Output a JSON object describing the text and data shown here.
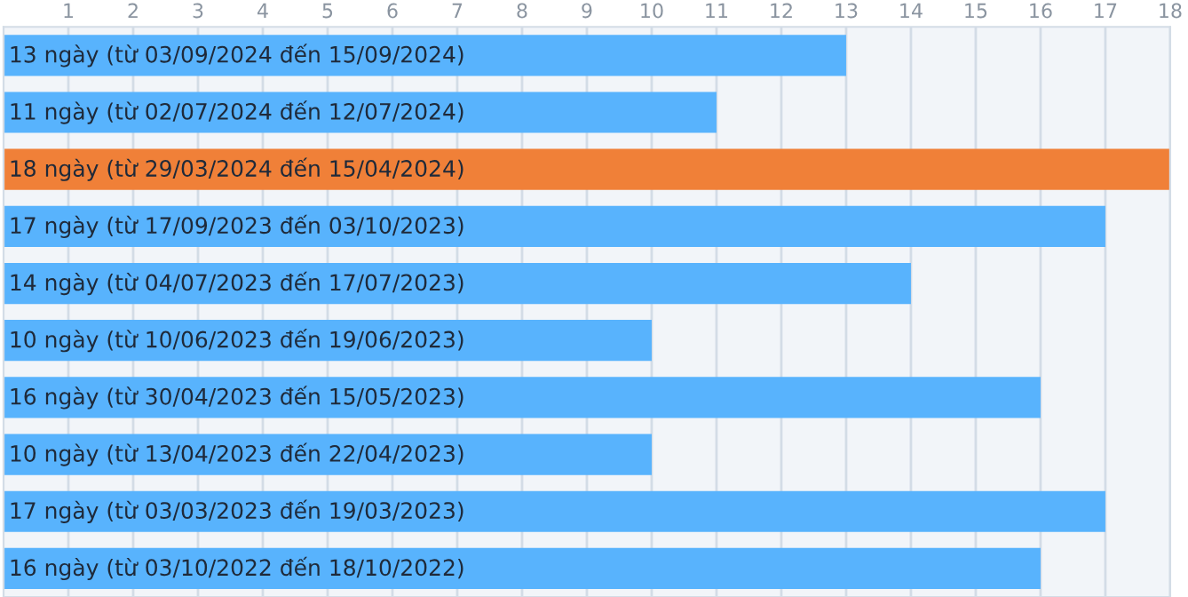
{
  "chart_data": {
    "type": "bar",
    "orientation": "horizontal",
    "categories": [
      null,
      null,
      null,
      null,
      null,
      null,
      null,
      null,
      null,
      null
    ],
    "values": [
      13,
      11,
      18,
      17,
      14,
      10,
      16,
      10,
      17,
      16
    ],
    "colors": [
      "#58b3fd",
      "#58b3fd",
      "#f08038",
      "#58b3fd",
      "#58b3fd",
      "#58b3fd",
      "#58b3fd",
      "#58b3fd",
      "#58b3fd",
      "#58b3fd"
    ],
    "value_labels": [
      "13 ngày (từ 03/09/2024 đến 15/09/2024)",
      "11 ngày (từ 02/07/2024 đến 12/07/2024)",
      "18 ngày (từ 29/03/2024 đến 15/04/2024)",
      "17 ngày (từ 17/09/2023 đến 03/10/2023)",
      "14 ngày (từ 04/07/2023 đến 17/07/2023)",
      "10 ngày (từ 10/06/2023 đến 19/06/2023)",
      "16 ngày (từ 30/04/2023 đến 15/05/2023)",
      "10 ngày (từ 13/04/2023 đến 22/04/2023)",
      "17 ngày (từ 03/03/2023 đến 19/03/2023)",
      "16 ngày (từ 03/10/2022 đến 18/10/2022)"
    ],
    "xlim": [
      0,
      18
    ],
    "xticks": [
      1,
      2,
      3,
      4,
      5,
      6,
      7,
      8,
      9,
      10,
      11,
      12,
      13,
      14,
      15,
      16,
      17,
      18
    ],
    "grid": "x",
    "tick_labels": "x"
  }
}
